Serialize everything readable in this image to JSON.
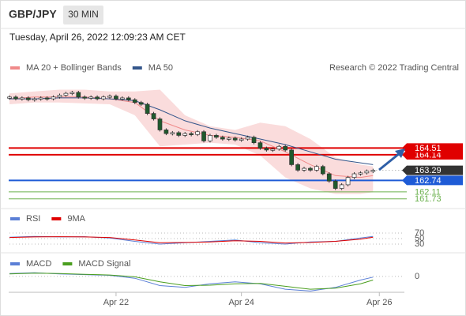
{
  "header": {
    "symbol": "GBP/JPY",
    "timeframe": "30 MIN",
    "timestamp": "Tuesday, April 26, 2022 12:09:23 AM CET"
  },
  "chart_data": [
    {
      "type": "candlestick",
      "credit": "Research © 2022 Trading Central",
      "values": [
        167.3,
        167.2,
        167.25,
        167.15,
        167.2,
        167.25,
        167.2,
        167.3,
        167.4,
        167.5,
        167.55,
        167.3,
        167.25,
        167.3,
        167.2,
        167.3,
        167.35,
        167.2,
        167.25,
        167.15,
        167.0,
        166.9,
        166.4,
        166.1,
        165.5,
        165.3,
        165.35,
        165.2,
        165.3,
        165.25,
        165.4,
        164.9,
        165.2,
        165.1,
        165.0,
        165.05,
        164.95,
        165.0,
        165.1,
        164.8,
        164.5,
        164.4,
        164.45,
        164.6,
        164.4,
        163.6,
        163.3,
        163.4,
        163.3,
        163.5,
        163.1,
        162.7,
        162.3,
        162.5,
        162.9,
        163.1,
        163.15,
        163.25,
        163.29
      ],
      "up_color": "#ffffff",
      "down_color": "#1f5a2c",
      "series": [
        {
          "name": "MA 20 + Bollinger Bands",
          "color": "#f08a8a",
          "x": [
            0,
            4,
            8,
            12,
            16,
            20,
            24,
            28,
            32,
            36,
            40,
            44,
            48,
            52,
            56,
            58
          ],
          "values": [
            167.2,
            167.3,
            167.3,
            167.3,
            167.2,
            167.0,
            166.0,
            165.5,
            165.2,
            165.1,
            164.9,
            164.3,
            163.6,
            163.0,
            162.9,
            163.0
          ],
          "upper": [
            167.5,
            167.6,
            167.7,
            167.7,
            167.6,
            167.6,
            167.7,
            166.3,
            165.7,
            165.5,
            165.9,
            165.7,
            165.0,
            164.0,
            163.6,
            163.5
          ],
          "lower": [
            166.9,
            167.0,
            167.0,
            166.95,
            166.9,
            166.3,
            164.6,
            164.7,
            164.8,
            164.7,
            164.1,
            162.9,
            162.3,
            162.0,
            162.0,
            162.1
          ]
        },
        {
          "name": "MA 50",
          "color": "#34568b",
          "x": [
            0,
            4,
            8,
            12,
            16,
            20,
            24,
            28,
            32,
            36,
            40,
            44,
            48,
            52,
            56,
            58
          ],
          "values": [
            167.2,
            167.2,
            167.25,
            167.25,
            167.2,
            167.1,
            166.6,
            166.0,
            165.6,
            165.3,
            165.0,
            164.7,
            164.3,
            163.9,
            163.7,
            163.6
          ]
        }
      ],
      "levels": [
        {
          "value": 164.14,
          "color": "#e00000",
          "boxed": true
        },
        {
          "value": 164.51,
          "color": "#e00000",
          "boxed": true
        },
        {
          "value": 163.29,
          "color": "#333333",
          "boxed": true
        },
        {
          "value": 162.74,
          "color": "#1e5bd6",
          "boxed": true
        },
        {
          "value": 162.11,
          "color": "#6ab04c",
          "boxed": false
        },
        {
          "value": 161.73,
          "color": "#6ab04c",
          "boxed": false
        }
      ],
      "xlim": [
        0,
        63
      ],
      "ylim": [
        161.2,
        168.5
      ],
      "xticks": [
        {
          "value": 17,
          "label": "Apr 22"
        },
        {
          "value": 37,
          "label": "Apr 24"
        },
        {
          "value": 59,
          "label": "Apr 26"
        }
      ]
    },
    {
      "type": "line",
      "xlim": [
        0,
        63
      ],
      "ylim": [
        0,
        100
      ],
      "yticks": [
        70,
        50,
        30
      ],
      "grid": true,
      "series": [
        {
          "name": "RSI",
          "color": "#5b7fd6",
          "x": [
            0,
            4,
            8,
            12,
            16,
            20,
            24,
            28,
            32,
            36,
            40,
            44,
            48,
            52,
            56,
            58
          ],
          "values": [
            55,
            58,
            56,
            57,
            52,
            40,
            30,
            35,
            40,
            45,
            35,
            30,
            38,
            40,
            52,
            58
          ]
        },
        {
          "name": "9MA",
          "color": "#e00000",
          "x": [
            0,
            4,
            8,
            12,
            16,
            20,
            24,
            28,
            32,
            36,
            40,
            44,
            48,
            52,
            56,
            58
          ],
          "values": [
            54,
            56,
            57,
            56,
            54,
            45,
            35,
            36,
            38,
            42,
            40,
            34,
            36,
            40,
            48,
            55
          ]
        }
      ]
    },
    {
      "type": "line",
      "xlim": [
        0,
        63
      ],
      "ylim": [
        -0.5,
        0.15
      ],
      "yticks": [
        0
      ],
      "grid": true,
      "series": [
        {
          "name": "MACD",
          "color": "#5b7fd6",
          "x": [
            0,
            4,
            8,
            12,
            16,
            20,
            24,
            28,
            32,
            36,
            40,
            44,
            48,
            52,
            56,
            58
          ],
          "values": [
            0.08,
            0.1,
            0.07,
            0.05,
            0.03,
            -0.05,
            -0.25,
            -0.3,
            -0.2,
            -0.15,
            -0.2,
            -0.35,
            -0.4,
            -0.3,
            -0.1,
            -0.02
          ]
        },
        {
          "name": "MACD Signal",
          "color": "#4a9e1e",
          "x": [
            0,
            4,
            8,
            12,
            16,
            20,
            24,
            28,
            32,
            36,
            40,
            44,
            48,
            52,
            56,
            58
          ],
          "values": [
            0.07,
            0.09,
            0.08,
            0.06,
            0.04,
            -0.01,
            -0.15,
            -0.25,
            -0.24,
            -0.2,
            -0.19,
            -0.27,
            -0.35,
            -0.32,
            -0.2,
            -0.1
          ]
        }
      ]
    }
  ]
}
